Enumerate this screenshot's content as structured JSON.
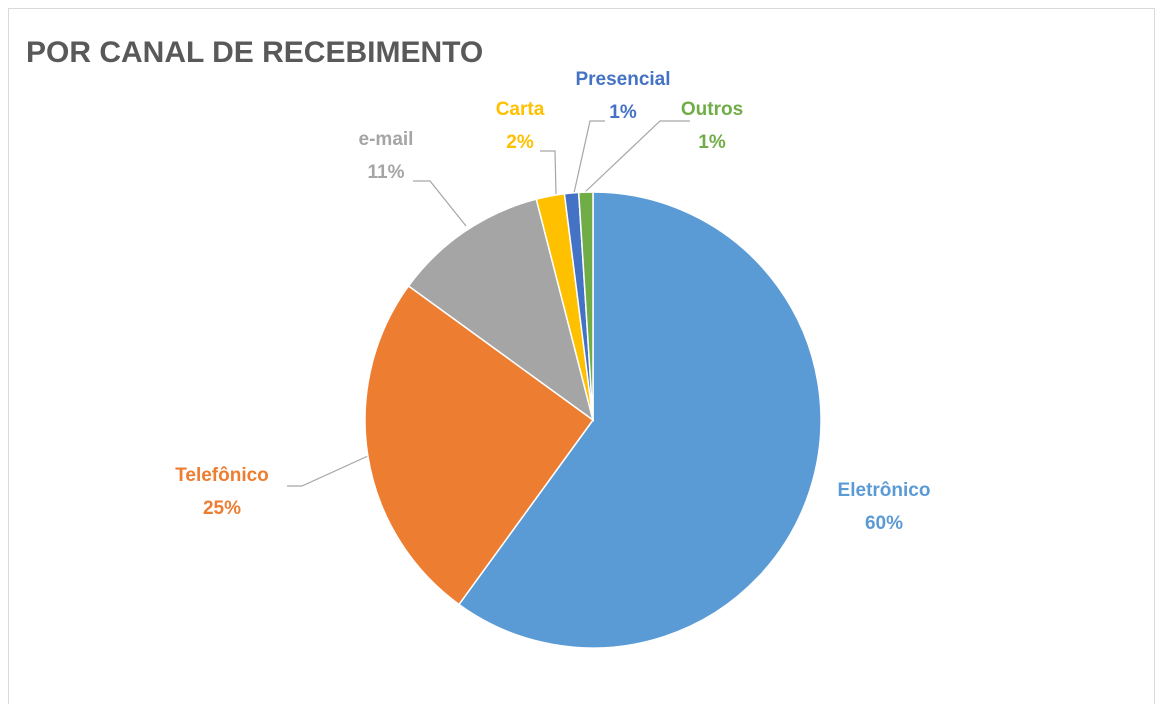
{
  "chart_data": {
    "type": "pie",
    "title": "POR CANAL DE RECEBIMENTO",
    "categories": [
      "Eletrônico",
      "Telefônico",
      "e-mail",
      "Carta",
      "Presencial",
      "Outros"
    ],
    "values": [
      60,
      25,
      11,
      2,
      1,
      1
    ],
    "value_labels": [
      "60%",
      "25%",
      "11%",
      "2%",
      "1%",
      "1%"
    ],
    "colors": [
      "#5b9bd5",
      "#ed7d31",
      "#a5a5a5",
      "#ffc000",
      "#4472c4",
      "#70ad47"
    ]
  }
}
